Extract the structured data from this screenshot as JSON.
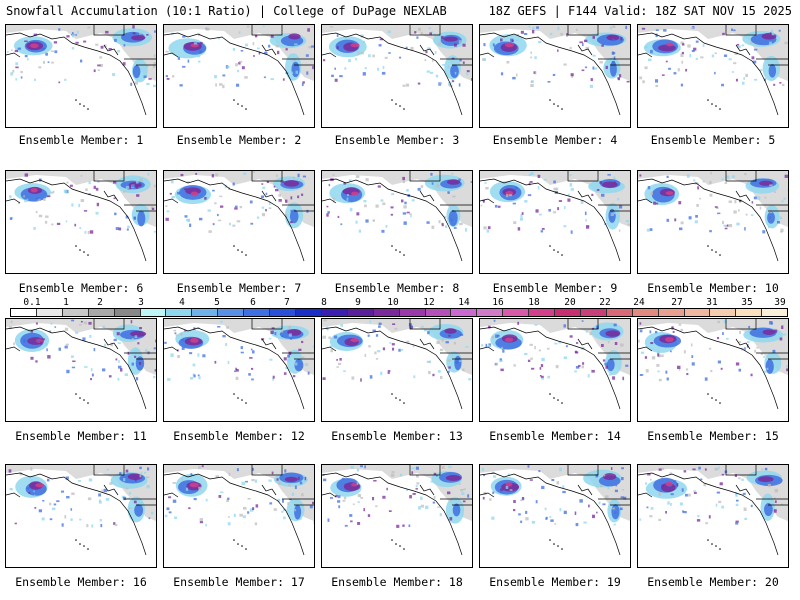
{
  "header": {
    "title_left": "Snowfall Accumulation (10:1 Ratio) | College of DuPage NEXLAB",
    "title_right": "18Z GEFS | F144 Valid: 18Z SAT NOV 15 2025"
  },
  "members": [
    {
      "label": "Ensemble Member: 1"
    },
    {
      "label": "Ensemble Member: 2"
    },
    {
      "label": "Ensemble Member: 3"
    },
    {
      "label": "Ensemble Member: 4"
    },
    {
      "label": "Ensemble Member: 5"
    },
    {
      "label": "Ensemble Member: 6"
    },
    {
      "label": "Ensemble Member: 7"
    },
    {
      "label": "Ensemble Member: 8"
    },
    {
      "label": "Ensemble Member: 9"
    },
    {
      "label": "Ensemble Member: 10"
    },
    {
      "label": "Ensemble Member: 11"
    },
    {
      "label": "Ensemble Member: 12"
    },
    {
      "label": "Ensemble Member: 13"
    },
    {
      "label": "Ensemble Member: 14"
    },
    {
      "label": "Ensemble Member: 15"
    },
    {
      "label": "Ensemble Member: 16"
    },
    {
      "label": "Ensemble Member: 17"
    },
    {
      "label": "Ensemble Member: 18"
    },
    {
      "label": "Ensemble Member: 19"
    },
    {
      "label": "Ensemble Member: 20"
    }
  ],
  "colorbar": {
    "labels": [
      "0.1",
      "1",
      "2",
      "3",
      "4",
      "5",
      "6",
      "7",
      "8",
      "9",
      "10",
      "12",
      "14",
      "16",
      "18",
      "20",
      "22",
      "24",
      "27",
      "31",
      "35",
      "39"
    ],
    "colors": [
      "#ffffff",
      "#e8e8e8",
      "#c8c8c8",
      "#a8a8a8",
      "#888888",
      "#bff5f5",
      "#8fd7ef",
      "#6fb2ea",
      "#5a8fe6",
      "#3f6fe0",
      "#2a4fd8",
      "#1a2fc8",
      "#3a1fb0",
      "#5a1f9a",
      "#7a2a9a",
      "#9a3aaa",
      "#b550b8",
      "#c86ad0",
      "#d07ac8",
      "#d85aa8",
      "#d23f8a",
      "#c82f70",
      "#c8407a",
      "#d86a78",
      "#e08a80",
      "#e8a090",
      "#f0b8a0",
      "#f6ccb0",
      "#fbe0c0",
      "#fdf0d8"
    ]
  },
  "colors": {
    "ocean": "#ffffff",
    "land": "#ffffff",
    "border": "#000000",
    "snow_light": "#bdbdbd",
    "snow_med": "#8fd7ef",
    "snow_blue": "#3f6fe0",
    "snow_purple": "#7a2a9a",
    "snow_magenta": "#d23f8a"
  }
}
